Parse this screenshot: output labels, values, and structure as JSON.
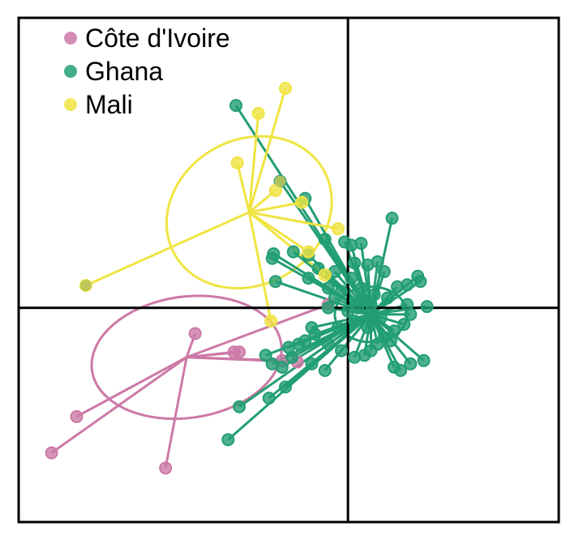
{
  "chart_data": {
    "type": "scatter",
    "title": "",
    "xlabel": "",
    "ylabel": "",
    "xlim": [
      -5.0,
      3.2
    ],
    "ylim": [
      -3.25,
      4.4
    ],
    "axes": {
      "x_zero_line": true,
      "y_zero_line": true
    },
    "grid": false,
    "legend_position": "top-left",
    "series": [
      {
        "name": "Côte d'Ivoire",
        "color": "#cc79a7",
        "centroid": [
          -2.45,
          -0.75
        ],
        "ellipse": {
          "rx": 1.45,
          "ry": 0.92,
          "angle": -8
        },
        "points": [
          [
            -4.12,
            -1.65
          ],
          [
            -2.77,
            -2.43
          ],
          [
            -2.32,
            -0.39
          ],
          [
            -1.73,
            -0.67
          ],
          [
            -1.65,
            -0.67
          ],
          [
            -0.77,
            -0.82
          ],
          [
            -4.5,
            -2.2
          ],
          [
            -0.3,
            0.05
          ],
          [
            -1.0,
            -0.8
          ]
        ]
      },
      {
        "name": "Ghana",
        "color": "#229e73",
        "centroid": [
          0.35,
          -0.1
        ],
        "ellipse": {
          "rx": 0.55,
          "ry": 0.42,
          "angle": 0
        },
        "points": [
          [
            -1.7,
            3.07
          ],
          [
            -1.03,
            1.92
          ],
          [
            -0.65,
            1.66
          ],
          [
            0.67,
            1.36
          ],
          [
            -0.35,
            1.04
          ],
          [
            -0.05,
            1.0
          ],
          [
            0.05,
            0.95
          ],
          [
            0.2,
            0.98
          ],
          [
            -1.13,
            0.82
          ],
          [
            -0.83,
            0.85
          ],
          [
            -1.15,
            0.75
          ],
          [
            -0.6,
            0.8
          ],
          [
            0.1,
            0.68
          ],
          [
            0.3,
            0.65
          ],
          [
            0.45,
            0.7
          ],
          [
            0.55,
            0.55
          ],
          [
            1.06,
            0.48
          ],
          [
            1.1,
            0.4
          ],
          [
            0.9,
            0.35
          ],
          [
            0.75,
            0.32
          ],
          [
            -1.1,
            0.4
          ],
          [
            -0.6,
            0.45
          ],
          [
            -0.3,
            0.3
          ],
          [
            -0.1,
            0.25
          ],
          [
            0.2,
            0.3
          ],
          [
            0.4,
            0.2
          ],
          [
            0.6,
            0.15
          ],
          [
            0.9,
            0.05
          ],
          [
            1.2,
            0.02
          ],
          [
            0.95,
            -0.1
          ],
          [
            0.85,
            -0.25
          ],
          [
            0.7,
            -0.35
          ],
          [
            0.55,
            -0.45
          ],
          [
            0.45,
            -0.55
          ],
          [
            0.35,
            -0.65
          ],
          [
            0.25,
            -0.72
          ],
          [
            0.1,
            -0.75
          ],
          [
            -0.1,
            -0.65
          ],
          [
            -0.3,
            -0.55
          ],
          [
            -0.5,
            -0.4
          ],
          [
            -0.55,
            -0.3
          ],
          [
            -0.65,
            -0.5
          ],
          [
            -0.85,
            -0.75
          ],
          [
            -1.0,
            -0.9
          ],
          [
            -1.15,
            -0.85
          ],
          [
            -0.55,
            -0.85
          ],
          [
            -0.35,
            -0.95
          ],
          [
            0.7,
            -0.9
          ],
          [
            0.8,
            -0.95
          ],
          [
            0.95,
            -0.85
          ],
          [
            1.15,
            -0.8
          ],
          [
            0.65,
            -0.5
          ],
          [
            -0.3,
            0.0
          ],
          [
            0.0,
            -0.05
          ],
          [
            0.15,
            0.0
          ],
          [
            0.35,
            0.05
          ],
          [
            0.05,
            0.45
          ],
          [
            0.25,
            0.12
          ],
          [
            -0.2,
            0.15
          ],
          [
            0.1,
            -0.2
          ],
          [
            0.3,
            -0.3
          ],
          [
            -0.15,
            -0.3
          ],
          [
            0.5,
            -0.15
          ],
          [
            -0.45,
            0.6
          ],
          [
            -0.95,
            -1.2
          ],
          [
            -1.2,
            -1.37
          ],
          [
            -1.65,
            -1.5
          ],
          [
            -1.82,
            -2.0
          ],
          [
            -0.75,
            -0.55
          ],
          [
            -1.25,
            -0.72
          ],
          [
            -0.9,
            -0.6
          ],
          [
            -0.2,
            0.55
          ]
        ]
      },
      {
        "name": "Mali",
        "color": "#f0e442",
        "centroid": [
          -1.5,
          1.45
        ],
        "ellipse": {
          "rx": 1.3,
          "ry": 1.1,
          "angle": -30
        },
        "points": [
          [
            -0.95,
            3.33
          ],
          [
            -1.36,
            2.95
          ],
          [
            -1.68,
            2.2
          ],
          [
            -1.1,
            1.78
          ],
          [
            -0.7,
            1.6
          ],
          [
            -0.15,
            1.2
          ],
          [
            -3.98,
            0.34
          ],
          [
            -1.17,
            -0.2
          ],
          [
            -0.35,
            0.5
          ],
          [
            -0.6,
            0.85
          ]
        ]
      }
    ],
    "overlaps": [
      {
        "color": "#b8c45a",
        "point": [
          -1.03,
          1.92
        ]
      },
      {
        "color": "#b8c45a",
        "point": [
          -3.98,
          0.34
        ]
      }
    ]
  }
}
